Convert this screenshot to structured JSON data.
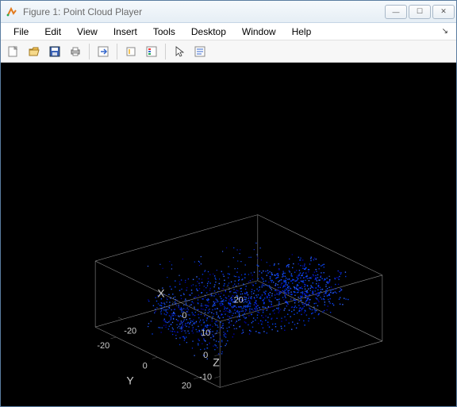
{
  "window": {
    "title": "Figure 1: Point Cloud Player",
    "buttons": {
      "min": "—",
      "max": "☐",
      "close": "✕"
    }
  },
  "menu": {
    "file": "File",
    "edit": "Edit",
    "view": "View",
    "insert": "Insert",
    "tools": "Tools",
    "desktop": "Desktop",
    "window": "Window",
    "help": "Help",
    "aux": "↘"
  },
  "toolbar_icons": {
    "new": "new-figure-icon",
    "open": "open-icon",
    "save": "save-icon",
    "print": "print-icon",
    "link": "link-icon",
    "rotate": "rotate3d-icon",
    "legend": "legend-icon",
    "cursor": "cursor-icon",
    "notes": "notes-icon"
  },
  "chart": {
    "type": "point-cloud-3d",
    "background_color": "#000000",
    "grid_color": "#888888",
    "text_color": "#cccccc",
    "point_colors": [
      "#0033dd",
      "#0044ff",
      "#1a53ff",
      "#0000aa",
      "#3366ff",
      "#0a2be0"
    ],
    "axes": {
      "x": {
        "label": "X",
        "ticks": [
          -20,
          0,
          20
        ]
      },
      "y": {
        "label": "Y",
        "ticks": [
          -20,
          0,
          20
        ]
      },
      "z": {
        "label": "Z",
        "ticks": [
          -10,
          0,
          10
        ]
      }
    },
    "axis_label_fontsize": 14,
    "tick_fontsize": 11
  }
}
